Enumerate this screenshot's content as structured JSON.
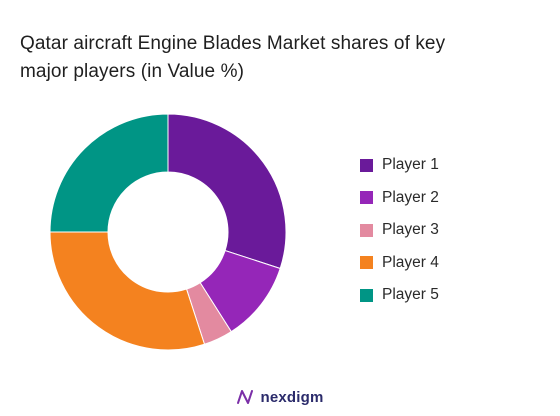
{
  "chart_data": {
    "type": "pie",
    "variant": "donut",
    "title": "Qatar aircraft Engine Blades Market shares of key major players (in Value %)",
    "categories": [
      "Player 1",
      "Player 2",
      "Player 3",
      "Player 4",
      "Player 5"
    ],
    "values": [
      30,
      11,
      4,
      30,
      25
    ],
    "colors": [
      "#6a1a9a",
      "#9526b8",
      "#e38aa0",
      "#f4821f",
      "#009585"
    ],
    "legend_position": "right"
  },
  "title_lines": [
    "Qatar aircraft Engine Blades Market shares of key",
    "major players (in Value %)"
  ],
  "legend": [
    {
      "label": "Player 1",
      "color": "#6a1a9a"
    },
    {
      "label": "Player 2",
      "color": "#9526b8"
    },
    {
      "label": "Player 3",
      "color": "#e38aa0"
    },
    {
      "label": "Player 4",
      "color": "#f4821f"
    },
    {
      "label": "Player 5",
      "color": "#009585"
    }
  ],
  "footer": {
    "brand": "nexdigm",
    "icon": "nexdigm-logo-icon",
    "brand_color": "#2b2b6b"
  }
}
